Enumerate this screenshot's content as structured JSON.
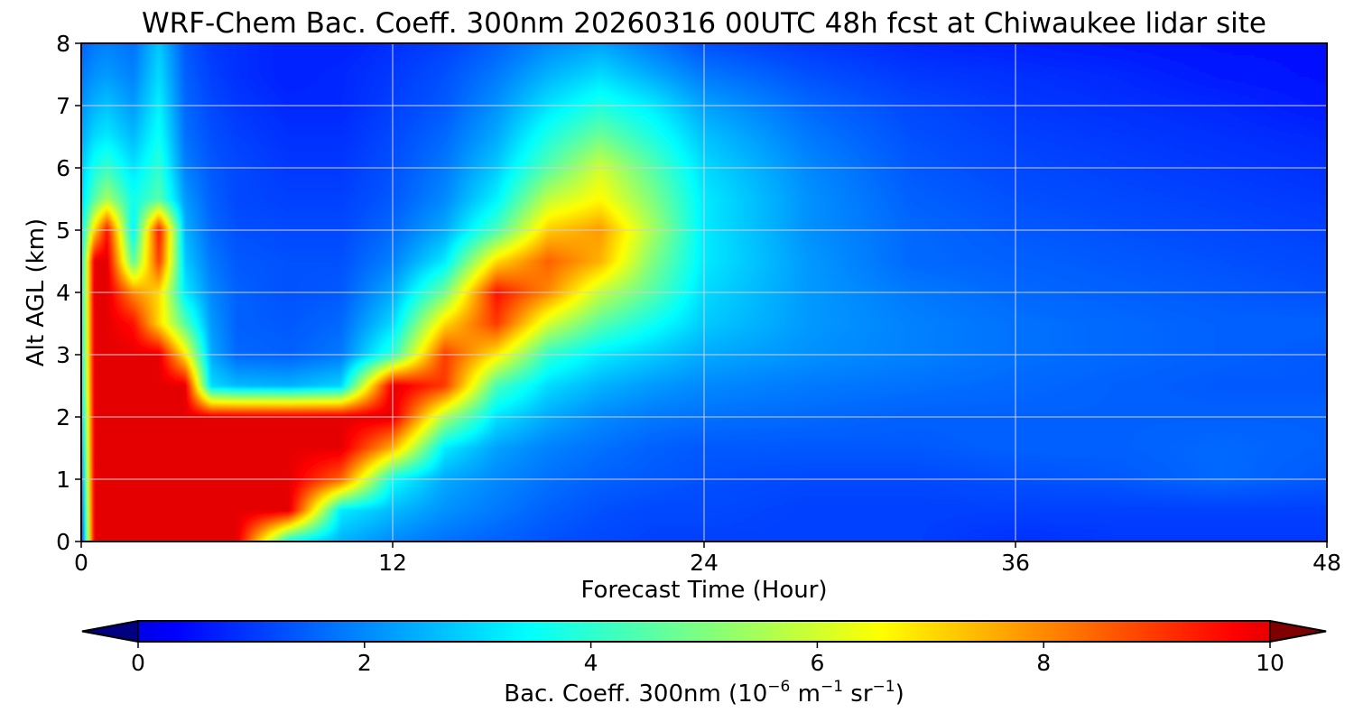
{
  "chart_data": {
    "type": "heatmap",
    "title": "WRF-Chem Bac. Coeff. 300nm  20260316 00UTC 48h fcst at Chiwaukee lidar site",
    "xlabel": "Forecast Time (Hour)",
    "ylabel": "Alt AGL (km)",
    "xlim": [
      0,
      48
    ],
    "ylim": [
      0,
      8
    ],
    "x_ticks": [
      0,
      12,
      24,
      36,
      48
    ],
    "y_ticks": [
      0,
      1,
      2,
      3,
      4,
      5,
      6,
      7,
      8
    ],
    "grid": true,
    "colorscale": "jet",
    "colorbar": {
      "label_main": "Bac. Coeff. 300nm  (10",
      "label_exp1": "−6",
      "label_mid": " m",
      "label_exp2": "−1",
      "label_mid2": " sr",
      "label_exp3": "−1",
      "label_end": ")",
      "range": [
        0,
        10
      ],
      "ticks": [
        0,
        2,
        4,
        6,
        8,
        10
      ],
      "extend": "both",
      "orientation": "horizontal"
    },
    "x": [
      0,
      0.5,
      1,
      2,
      3,
      4,
      5,
      6,
      8,
      10,
      12,
      14,
      16,
      18,
      20,
      22,
      24,
      28,
      32,
      36,
      40,
      44,
      48
    ],
    "y": [
      0,
      0.5,
      1,
      1.5,
      2,
      2.5,
      3,
      3.5,
      4,
      4.5,
      5,
      5.5,
      6,
      6.5,
      7,
      7.5,
      8
    ],
    "z": [
      [
        0.8,
        10,
        10,
        10,
        10,
        10,
        10,
        10,
        3.5,
        2.5,
        2.0,
        1.7,
        1.5,
        1.3,
        1.2,
        1.1,
        1.1,
        1.1,
        1.1,
        0.9,
        1.0,
        1.0,
        1.0
      ],
      [
        1.3,
        10,
        10,
        10,
        10,
        10,
        10,
        10,
        10,
        3.2,
        2.6,
        2.1,
        1.8,
        1.5,
        1.3,
        1.2,
        1.2,
        1.1,
        1.1,
        1.1,
        1.1,
        1.1,
        1.1
      ],
      [
        1.7,
        10,
        10,
        10,
        10,
        10,
        10,
        10,
        10,
        8.5,
        3.5,
        2.4,
        2.0,
        1.7,
        1.5,
        1.4,
        1.3,
        1.2,
        1.2,
        1.3,
        1.4,
        1.6,
        1.4
      ],
      [
        2.1,
        10,
        10,
        10,
        10,
        10,
        10,
        10,
        10,
        10,
        7.5,
        3.2,
        2.3,
        1.9,
        1.7,
        1.5,
        1.4,
        1.4,
        1.4,
        1.5,
        1.5,
        1.6,
        1.5
      ],
      [
        2.5,
        10,
        10,
        10,
        10,
        10,
        10,
        10,
        10,
        10,
        10,
        5.5,
        3.1,
        2.4,
        2.0,
        1.8,
        1.7,
        1.6,
        1.5,
        1.5,
        1.5,
        1.5,
        1.5
      ],
      [
        3.0,
        10,
        10,
        10,
        10,
        10,
        3.0,
        2.6,
        2.5,
        2.9,
        10,
        9.0,
        4.3,
        3.0,
        2.5,
        2.2,
        2.0,
        1.8,
        1.7,
        1.6,
        1.5,
        1.4,
        1.4
      ],
      [
        3.2,
        10,
        10,
        10,
        10,
        6.8,
        2.4,
        1.6,
        1.5,
        1.8,
        4.0,
        9.0,
        6.8,
        4.0,
        3.2,
        2.8,
        2.4,
        2.1,
        1.9,
        1.7,
        1.6,
        1.5,
        1.4
      ],
      [
        3.3,
        10,
        10,
        9.5,
        7.0,
        4.5,
        2.2,
        1.5,
        1.4,
        1.6,
        3.0,
        7.0,
        9.0,
        6.0,
        4.5,
        3.6,
        2.8,
        2.2,
        1.9,
        1.7,
        1.6,
        1.5,
        1.5
      ],
      [
        3.4,
        10,
        10,
        8.0,
        7.0,
        3.2,
        2.0,
        1.5,
        1.3,
        1.4,
        2.4,
        4.8,
        9.5,
        8.0,
        5.8,
        4.5,
        3.0,
        2.2,
        1.8,
        1.6,
        1.5,
        1.4,
        1.3
      ],
      [
        3.3,
        10,
        10,
        4.5,
        9.0,
        2.8,
        1.8,
        1.4,
        1.3,
        1.3,
        1.9,
        3.2,
        7.0,
        8.5,
        7.5,
        5.0,
        3.2,
        2.2,
        1.6,
        1.5,
        1.4,
        1.3,
        1.2
      ],
      [
        3.2,
        7.0,
        9.5,
        3.2,
        9.5,
        2.5,
        1.6,
        1.3,
        1.2,
        1.2,
        1.6,
        2.4,
        4.3,
        7.2,
        7.8,
        5.5,
        3.2,
        2.1,
        1.6,
        1.4,
        1.3,
        1.2,
        1.1
      ],
      [
        3.0,
        4.5,
        5.5,
        3.6,
        4.5,
        2.2,
        1.5,
        1.2,
        1.1,
        1.1,
        1.4,
        2.0,
        3.3,
        5.8,
        6.6,
        5.0,
        3.2,
        2.1,
        1.5,
        1.3,
        1.2,
        1.1,
        1.0
      ],
      [
        2.8,
        3.7,
        4.1,
        3.1,
        4.0,
        1.9,
        1.4,
        1.2,
        1.0,
        1.0,
        1.3,
        1.8,
        2.8,
        4.5,
        6.0,
        4.5,
        3.0,
        2.0,
        1.4,
        1.2,
        1.1,
        1.0,
        0.9
      ],
      [
        2.4,
        3.0,
        3.2,
        2.6,
        3.6,
        1.7,
        1.3,
        1.1,
        0.9,
        0.9,
        1.2,
        1.6,
        2.4,
        3.8,
        4.8,
        3.8,
        2.7,
        1.8,
        1.3,
        1.1,
        1.0,
        0.9,
        0.8
      ],
      [
        2.1,
        2.5,
        2.7,
        2.2,
        3.3,
        1.6,
        1.2,
        1.0,
        0.8,
        0.8,
        1.1,
        1.4,
        2.1,
        3.1,
        3.8,
        3.2,
        2.3,
        1.6,
        1.2,
        1.0,
        0.9,
        0.8,
        0.6
      ],
      [
        1.8,
        2.1,
        2.2,
        1.9,
        3.0,
        1.5,
        1.1,
        0.9,
        0.7,
        0.8,
        1.0,
        1.3,
        1.8,
        2.5,
        3.0,
        2.4,
        1.8,
        1.3,
        1.0,
        0.9,
        0.8,
        0.6,
        0.5
      ],
      [
        1.5,
        1.8,
        1.9,
        1.7,
        2.8,
        1.4,
        1.0,
        0.9,
        0.7,
        0.7,
        0.9,
        1.1,
        1.5,
        2.0,
        2.3,
        1.8,
        1.3,
        1.0,
        0.8,
        0.7,
        0.6,
        0.5,
        0.5
      ]
    ]
  }
}
